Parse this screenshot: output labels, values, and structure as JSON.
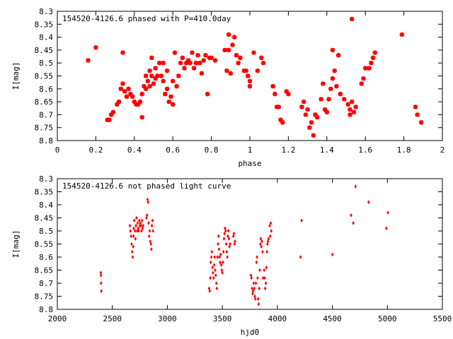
{
  "chart_data": [
    {
      "type": "scatter",
      "title": "154520-4126.6 phased with P=410.0day",
      "xlabel": "phase",
      "ylabel": "I[mag]",
      "xlim": [
        0,
        2
      ],
      "ylim": [
        8.8,
        8.3
      ],
      "y_inverted": true,
      "grid": false,
      "xticks": [
        0,
        0.2,
        0.4,
        0.6,
        0.8,
        1,
        1.2,
        1.4,
        1.6,
        1.8,
        2
      ],
      "xtick_labels": [
        "0",
        "0.2",
        "0.4",
        "0.6",
        "0.8",
        "1",
        "1.2",
        "1.4",
        "1.6",
        "1.8",
        "2"
      ],
      "yticks": [
        8.3,
        8.35,
        8.4,
        8.45,
        8.5,
        8.55,
        8.6,
        8.65,
        8.7,
        8.75,
        8.8
      ],
      "ytick_labels": [
        "8.3",
        "8.35",
        "8.4",
        "8.45",
        "8.5",
        "8.55",
        "8.6",
        "8.65",
        "8.7",
        "8.75",
        "8.8"
      ],
      "marker_color": "#ff0000",
      "marker": "star",
      "points": [
        [
          0.16,
          8.49
        ],
        [
          0.2,
          8.44
        ],
        [
          0.26,
          8.72
        ],
        [
          0.27,
          8.72
        ],
        [
          0.28,
          8.7
        ],
        [
          0.29,
          8.69
        ],
        [
          0.31,
          8.66
        ],
        [
          0.32,
          8.65
        ],
        [
          0.33,
          8.6
        ],
        [
          0.34,
          8.58
        ],
        [
          0.34,
          8.46
        ],
        [
          0.35,
          8.61
        ],
        [
          0.36,
          8.63
        ],
        [
          0.37,
          8.6
        ],
        [
          0.38,
          8.62
        ],
        [
          0.39,
          8.63
        ],
        [
          0.4,
          8.65
        ],
        [
          0.41,
          8.66
        ],
        [
          0.42,
          8.66
        ],
        [
          0.43,
          8.65
        ],
        [
          0.44,
          8.71
        ],
        [
          0.44,
          8.62
        ],
        [
          0.45,
          8.59
        ],
        [
          0.46,
          8.6
        ],
        [
          0.46,
          8.55
        ],
        [
          0.47,
          8.57
        ],
        [
          0.48,
          8.59
        ],
        [
          0.48,
          8.53
        ],
        [
          0.49,
          8.55
        ],
        [
          0.49,
          8.48
        ],
        [
          0.5,
          8.58
        ],
        [
          0.51,
          8.56
        ],
        [
          0.51,
          8.52
        ],
        [
          0.52,
          8.55
        ],
        [
          0.53,
          8.5
        ],
        [
          0.54,
          8.55
        ],
        [
          0.55,
          8.57
        ],
        [
          0.55,
          8.5
        ],
        [
          0.56,
          8.62
        ],
        [
          0.57,
          8.6
        ],
        [
          0.57,
          8.53
        ],
        [
          0.58,
          8.65
        ],
        [
          0.59,
          8.63
        ],
        [
          0.6,
          8.66
        ],
        [
          0.6,
          8.57
        ],
        [
          0.61,
          8.46
        ],
        [
          0.62,
          8.59
        ],
        [
          0.63,
          8.55
        ],
        [
          0.64,
          8.5
        ],
        [
          0.65,
          8.48
        ],
        [
          0.66,
          8.52
        ],
        [
          0.67,
          8.5
        ],
        [
          0.68,
          8.49
        ],
        [
          0.69,
          8.5
        ],
        [
          0.7,
          8.46
        ],
        [
          0.71,
          8.52
        ],
        [
          0.72,
          8.5
        ],
        [
          0.73,
          8.47
        ],
        [
          0.74,
          8.5
        ],
        [
          0.75,
          8.54
        ],
        [
          0.76,
          8.49
        ],
        [
          0.77,
          8.47
        ],
        [
          0.78,
          8.62
        ],
        [
          0.79,
          8.48
        ],
        [
          0.8,
          8.48
        ],
        [
          0.82,
          8.49
        ],
        [
          0.87,
          8.45
        ],
        [
          0.88,
          8.53
        ],
        [
          0.89,
          8.45
        ],
        [
          0.89,
          8.39
        ],
        [
          0.9,
          8.54
        ],
        [
          0.91,
          8.43
        ],
        [
          0.92,
          8.4
        ],
        [
          0.93,
          8.47
        ],
        [
          0.94,
          8.5
        ],
        [
          0.95,
          8.48
        ],
        [
          0.97,
          8.53
        ],
        [
          0.98,
          8.53
        ],
        [
          0.99,
          8.55
        ],
        [
          1.0,
          8.59
        ],
        [
          1.0,
          8.57
        ],
        [
          1.02,
          8.46
        ],
        [
          1.04,
          8.53
        ],
        [
          1.06,
          8.48
        ],
        [
          1.07,
          8.5
        ],
        [
          1.12,
          8.59
        ],
        [
          1.13,
          8.62
        ],
        [
          1.14,
          8.67
        ],
        [
          1.15,
          8.67
        ],
        [
          1.16,
          8.72
        ],
        [
          1.17,
          8.73
        ],
        [
          1.19,
          8.61
        ],
        [
          1.2,
          8.62
        ],
        [
          1.27,
          8.67
        ],
        [
          1.28,
          8.65
        ],
        [
          1.29,
          8.7
        ],
        [
          1.3,
          8.68
        ],
        [
          1.31,
          8.75
        ],
        [
          1.32,
          8.73
        ],
        [
          1.33,
          8.78
        ],
        [
          1.34,
          8.7
        ],
        [
          1.35,
          8.71
        ],
        [
          1.37,
          8.64
        ],
        [
          1.38,
          8.58
        ],
        [
          1.39,
          8.68
        ],
        [
          1.4,
          8.69
        ],
        [
          1.41,
          8.64
        ],
        [
          1.42,
          8.6
        ],
        [
          1.43,
          8.56
        ],
        [
          1.43,
          8.45
        ],
        [
          1.44,
          8.53
        ],
        [
          1.45,
          8.59
        ],
        [
          1.46,
          8.47
        ],
        [
          1.47,
          8.62
        ],
        [
          1.49,
          8.64
        ],
        [
          1.51,
          8.66
        ],
        [
          1.52,
          8.68
        ],
        [
          1.52,
          8.7
        ],
        [
          1.53,
          8.33
        ],
        [
          1.53,
          8.65
        ],
        [
          1.54,
          8.69
        ],
        [
          1.55,
          8.67
        ],
        [
          1.58,
          8.58
        ],
        [
          1.59,
          8.56
        ],
        [
          1.6,
          8.52
        ],
        [
          1.62,
          8.52
        ],
        [
          1.63,
          8.5
        ],
        [
          1.64,
          8.48
        ],
        [
          1.65,
          8.46
        ],
        [
          1.79,
          8.39
        ],
        [
          1.86,
          8.67
        ],
        [
          1.87,
          8.7
        ],
        [
          1.89,
          8.73
        ]
      ]
    },
    {
      "type": "scatter",
      "title": "154520-4126.6 not phased light curve",
      "xlabel": "hjd0",
      "ylabel": "I[mag]",
      "xlim": [
        2000,
        5500
      ],
      "ylim": [
        8.8,
        8.3
      ],
      "y_inverted": true,
      "grid": false,
      "xticks": [
        2000,
        2500,
        3000,
        3500,
        4000,
        4500,
        5000,
        5500
      ],
      "xtick_labels": [
        "2000",
        "2500",
        "3000",
        "3500",
        "4000",
        "4500",
        "5000",
        "5500"
      ],
      "yticks": [
        8.3,
        8.35,
        8.4,
        8.45,
        8.5,
        8.55,
        8.6,
        8.65,
        8.7,
        8.75,
        8.8
      ],
      "ytick_labels": [
        "8.3",
        "8.35",
        "8.4",
        "8.45",
        "8.5",
        "8.55",
        "8.6",
        "8.65",
        "8.7",
        "8.75",
        "8.8"
      ],
      "marker_color": "#ff0000",
      "marker": "diamond",
      "points": [
        [
          2395,
          8.66
        ],
        [
          2397,
          8.67
        ],
        [
          2398,
          8.7
        ],
        [
          2400,
          8.73
        ],
        [
          2660,
          8.48
        ],
        [
          2665,
          8.5
        ],
        [
          2670,
          8.52
        ],
        [
          2675,
          8.55
        ],
        [
          2680,
          8.58
        ],
        [
          2685,
          8.6
        ],
        [
          2690,
          8.56
        ],
        [
          2692,
          8.52
        ],
        [
          2695,
          8.49
        ],
        [
          2700,
          8.46
        ],
        [
          2705,
          8.5
        ],
        [
          2710,
          8.53
        ],
        [
          2715,
          8.48
        ],
        [
          2720,
          8.45
        ],
        [
          2725,
          8.5
        ],
        [
          2730,
          8.47
        ],
        [
          2735,
          8.49
        ],
        [
          2740,
          8.5
        ],
        [
          2745,
          8.46
        ],
        [
          2750,
          8.48
        ],
        [
          2755,
          8.47
        ],
        [
          2760,
          8.48
        ],
        [
          2765,
          8.5
        ],
        [
          2770,
          8.46
        ],
        [
          2775,
          8.49
        ],
        [
          2780,
          8.48
        ],
        [
          2810,
          8.45
        ],
        [
          2815,
          8.44
        ],
        [
          2820,
          8.38
        ],
        [
          2825,
          8.39
        ],
        [
          2830,
          8.47
        ],
        [
          2835,
          8.52
        ],
        [
          2840,
          8.5
        ],
        [
          2845,
          8.54
        ],
        [
          2850,
          8.55
        ],
        [
          2855,
          8.57
        ],
        [
          2860,
          8.48
        ],
        [
          2865,
          8.46
        ],
        [
          2870,
          8.5
        ],
        [
          3380,
          8.72
        ],
        [
          3385,
          8.73
        ],
        [
          3390,
          8.68
        ],
        [
          3395,
          8.62
        ],
        [
          3400,
          8.6
        ],
        [
          3405,
          8.58
        ],
        [
          3410,
          8.64
        ],
        [
          3415,
          8.66
        ],
        [
          3420,
          8.68
        ],
        [
          3425,
          8.63
        ],
        [
          3430,
          8.6
        ],
        [
          3435,
          8.65
        ],
        [
          3440,
          8.67
        ],
        [
          3445,
          8.7
        ],
        [
          3450,
          8.72
        ],
        [
          3455,
          8.6
        ],
        [
          3460,
          8.55
        ],
        [
          3465,
          8.52
        ],
        [
          3470,
          8.57
        ],
        [
          3475,
          8.6
        ],
        [
          3480,
          8.62
        ],
        [
          3485,
          8.59
        ],
        [
          3490,
          8.63
        ],
        [
          3495,
          8.65
        ],
        [
          3500,
          8.66
        ],
        [
          3505,
          8.62
        ],
        [
          3510,
          8.58
        ],
        [
          3515,
          8.53
        ],
        [
          3520,
          8.51
        ],
        [
          3525,
          8.49
        ],
        [
          3530,
          8.5
        ],
        [
          3535,
          8.55
        ],
        [
          3540,
          8.58
        ],
        [
          3545,
          8.6
        ],
        [
          3550,
          8.52
        ],
        [
          3555,
          8.5
        ],
        [
          3560,
          8.53
        ],
        [
          3565,
          8.56
        ],
        [
          3570,
          8.55
        ],
        [
          3600,
          8.52
        ],
        [
          3605,
          8.51
        ],
        [
          3610,
          8.55
        ],
        [
          3615,
          8.54
        ],
        [
          3760,
          8.67
        ],
        [
          3765,
          8.68
        ],
        [
          3770,
          8.72
        ],
        [
          3775,
          8.74
        ],
        [
          3780,
          8.73
        ],
        [
          3785,
          8.7
        ],
        [
          3790,
          8.72
        ],
        [
          3795,
          8.75
        ],
        [
          3800,
          8.76
        ],
        [
          3805,
          8.7
        ],
        [
          3810,
          8.62
        ],
        [
          3815,
          8.6
        ],
        [
          3820,
          8.68
        ],
        [
          3825,
          8.76
        ],
        [
          3830,
          8.78
        ],
        [
          3835,
          8.72
        ],
        [
          3840,
          8.65
        ],
        [
          3845,
          8.55
        ],
        [
          3850,
          8.53
        ],
        [
          3855,
          8.56
        ],
        [
          3860,
          8.54
        ],
        [
          3865,
          8.58
        ],
        [
          3870,
          8.68
        ],
        [
          3880,
          8.65
        ],
        [
          3885,
          8.68
        ],
        [
          3890,
          8.72
        ],
        [
          3895,
          8.7
        ],
        [
          3900,
          8.64
        ],
        [
          3905,
          8.58
        ],
        [
          3910,
          8.55
        ],
        [
          3915,
          8.54
        ],
        [
          3920,
          8.53
        ],
        [
          3930,
          8.48
        ],
        [
          3935,
          8.52
        ],
        [
          3940,
          8.47
        ],
        [
          3945,
          8.5
        ],
        [
          4210,
          8.6
        ],
        [
          4220,
          8.46
        ],
        [
          4500,
          8.59
        ],
        [
          4670,
          8.44
        ],
        [
          4690,
          8.47
        ],
        [
          4710,
          8.33
        ],
        [
          4830,
          8.39
        ],
        [
          4990,
          8.49
        ],
        [
          5005,
          8.43
        ]
      ]
    }
  ]
}
